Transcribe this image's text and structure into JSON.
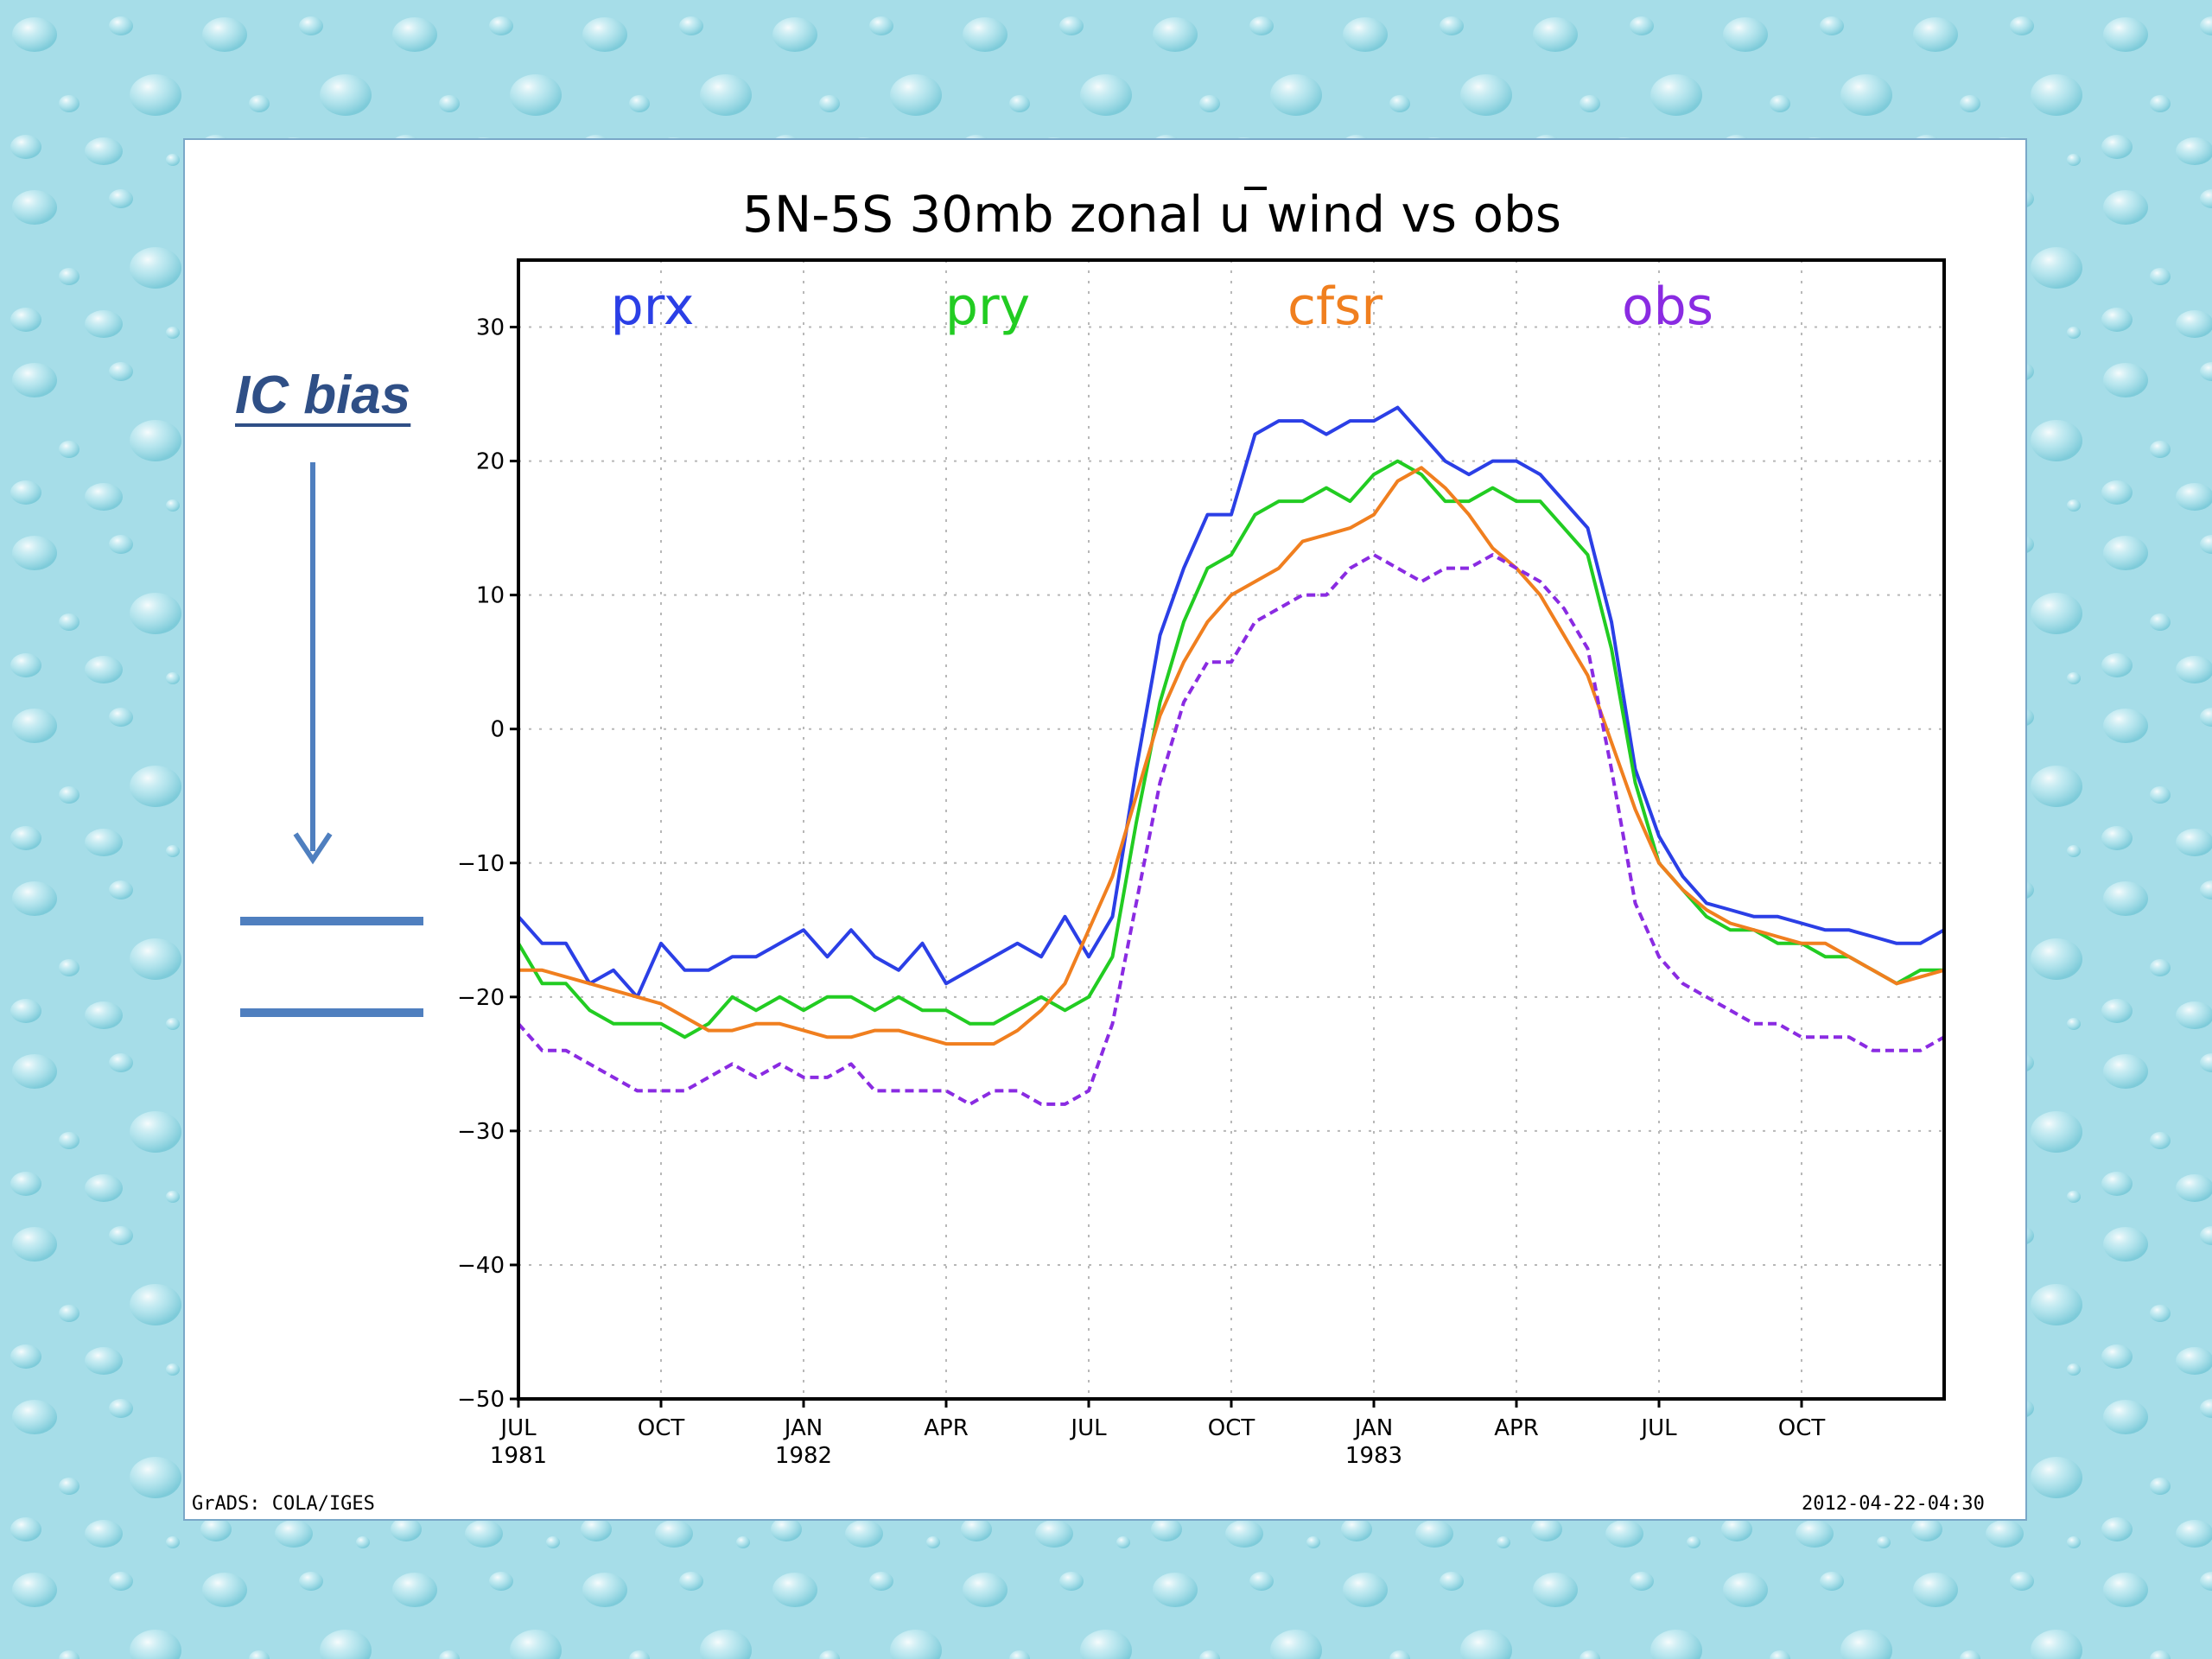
{
  "annotation": {
    "label": "IC bias",
    "arrow_color": "#4f7fbf"
  },
  "footer": {
    "left": "GrADS: COLA/IGES",
    "right": "2012-04-22-04:30"
  },
  "chart_data": {
    "type": "line",
    "title": "5N-5S 30mb zonal u wind vs obs",
    "xlabel": "",
    "ylabel": "",
    "ylim": [
      -50,
      35
    ],
    "yticks": [
      30,
      20,
      10,
      0,
      -10,
      -20,
      -30,
      -40,
      -50
    ],
    "xlim": [
      0,
      30
    ],
    "x_unit": "months since JUL 1981",
    "xticks": [
      {
        "x": 0,
        "label": "JUL",
        "year": "1981"
      },
      {
        "x": 3,
        "label": "OCT",
        "year": ""
      },
      {
        "x": 6,
        "label": "JAN",
        "year": "1982"
      },
      {
        "x": 9,
        "label": "APR",
        "year": ""
      },
      {
        "x": 12,
        "label": "JUL",
        "year": ""
      },
      {
        "x": 15,
        "label": "OCT",
        "year": ""
      },
      {
        "x": 18,
        "label": "JAN",
        "year": "1983"
      },
      {
        "x": 21,
        "label": "APR",
        "year": ""
      },
      {
        "x": 24,
        "label": "JUL",
        "year": ""
      },
      {
        "x": 27,
        "label": "OCT",
        "year": ""
      }
    ],
    "grid": true,
    "legend_position": "top inside plot",
    "series": [
      {
        "name": "prx",
        "color": "#2b3fe6",
        "dashed": false,
        "points": [
          [
            0,
            -14
          ],
          [
            0.5,
            -16
          ],
          [
            1,
            -16
          ],
          [
            1.5,
            -19
          ],
          [
            2,
            -18
          ],
          [
            2.5,
            -20
          ],
          [
            3,
            -16
          ],
          [
            3.5,
            -18
          ],
          [
            4,
            -18
          ],
          [
            4.5,
            -17
          ],
          [
            5,
            -17
          ],
          [
            5.5,
            -16
          ],
          [
            6,
            -15
          ],
          [
            6.5,
            -17
          ],
          [
            7,
            -15
          ],
          [
            7.5,
            -17
          ],
          [
            8,
            -18
          ],
          [
            8.5,
            -16
          ],
          [
            9,
            -19
          ],
          [
            9.5,
            -18
          ],
          [
            10,
            -17
          ],
          [
            10.5,
            -16
          ],
          [
            11,
            -17
          ],
          [
            11.5,
            -14
          ],
          [
            12,
            -17
          ],
          [
            12.5,
            -14
          ],
          [
            13,
            -3
          ],
          [
            13.5,
            7
          ],
          [
            14,
            12
          ],
          [
            14.5,
            16
          ],
          [
            15,
            16
          ],
          [
            15.5,
            22
          ],
          [
            16,
            23
          ],
          [
            16.5,
            23
          ],
          [
            17,
            22
          ],
          [
            17.5,
            23
          ],
          [
            18,
            23
          ],
          [
            18.5,
            24
          ],
          [
            19,
            22
          ],
          [
            19.5,
            20
          ],
          [
            20,
            19
          ],
          [
            20.5,
            20
          ],
          [
            21,
            20
          ],
          [
            21.5,
            19
          ],
          [
            22,
            17
          ],
          [
            22.5,
            15
          ],
          [
            23,
            8
          ],
          [
            23.5,
            -3
          ],
          [
            24,
            -8
          ],
          [
            24.5,
            -11
          ],
          [
            25,
            -13
          ],
          [
            25.5,
            -13.5
          ],
          [
            26,
            -14
          ],
          [
            26.5,
            -14
          ],
          [
            27,
            -14.5
          ],
          [
            27.5,
            -15
          ],
          [
            28,
            -15
          ],
          [
            28.5,
            -15.5
          ],
          [
            29,
            -16
          ],
          [
            29.5,
            -16
          ],
          [
            30,
            -15
          ]
        ]
      },
      {
        "name": "pry",
        "color": "#22cc22",
        "dashed": false,
        "points": [
          [
            0,
            -16
          ],
          [
            0.5,
            -19
          ],
          [
            1,
            -19
          ],
          [
            1.5,
            -21
          ],
          [
            2,
            -22
          ],
          [
            2.5,
            -22
          ],
          [
            3,
            -22
          ],
          [
            3.5,
            -23
          ],
          [
            4,
            -22
          ],
          [
            4.5,
            -20
          ],
          [
            5,
            -21
          ],
          [
            5.5,
            -20
          ],
          [
            6,
            -21
          ],
          [
            6.5,
            -20
          ],
          [
            7,
            -20
          ],
          [
            7.5,
            -21
          ],
          [
            8,
            -20
          ],
          [
            8.5,
            -21
          ],
          [
            9,
            -21
          ],
          [
            9.5,
            -22
          ],
          [
            10,
            -22
          ],
          [
            10.5,
            -21
          ],
          [
            11,
            -20
          ],
          [
            11.5,
            -21
          ],
          [
            12,
            -20
          ],
          [
            12.5,
            -17
          ],
          [
            13,
            -7
          ],
          [
            13.5,
            2
          ],
          [
            14,
            8
          ],
          [
            14.5,
            12
          ],
          [
            15,
            13
          ],
          [
            15.5,
            16
          ],
          [
            16,
            17
          ],
          [
            16.5,
            17
          ],
          [
            17,
            18
          ],
          [
            17.5,
            17
          ],
          [
            18,
            19
          ],
          [
            18.5,
            20
          ],
          [
            19,
            19
          ],
          [
            19.5,
            17
          ],
          [
            20,
            17
          ],
          [
            20.5,
            18
          ],
          [
            21,
            17
          ],
          [
            21.5,
            17
          ],
          [
            22,
            15
          ],
          [
            22.5,
            13
          ],
          [
            23,
            6
          ],
          [
            23.5,
            -4
          ],
          [
            24,
            -10
          ],
          [
            24.5,
            -12
          ],
          [
            25,
            -14
          ],
          [
            25.5,
            -15
          ],
          [
            26,
            -15
          ],
          [
            26.5,
            -16
          ],
          [
            27,
            -16
          ],
          [
            27.5,
            -17
          ],
          [
            28,
            -17
          ],
          [
            28.5,
            -18
          ],
          [
            29,
            -19
          ],
          [
            29.5,
            -18
          ],
          [
            30,
            -18
          ]
        ]
      },
      {
        "name": "cfsr",
        "color": "#f07f1f",
        "dashed": false,
        "points": [
          [
            0,
            -18
          ],
          [
            0.5,
            -18
          ],
          [
            1,
            -18.5
          ],
          [
            1.5,
            -19
          ],
          [
            2,
            -19.5
          ],
          [
            2.5,
            -20
          ],
          [
            3,
            -20.5
          ],
          [
            3.5,
            -21.5
          ],
          [
            4,
            -22.5
          ],
          [
            4.5,
            -22.5
          ],
          [
            5,
            -22
          ],
          [
            5.5,
            -22
          ],
          [
            6,
            -22.5
          ],
          [
            6.5,
            -23
          ],
          [
            7,
            -23
          ],
          [
            7.5,
            -22.5
          ],
          [
            8,
            -22.5
          ],
          [
            8.5,
            -23
          ],
          [
            9,
            -23.5
          ],
          [
            9.5,
            -23.5
          ],
          [
            10,
            -23.5
          ],
          [
            10.5,
            -22.5
          ],
          [
            11,
            -21
          ],
          [
            11.5,
            -19
          ],
          [
            12,
            -15
          ],
          [
            12.5,
            -11
          ],
          [
            13,
            -5
          ],
          [
            13.5,
            1
          ],
          [
            14,
            5
          ],
          [
            14.5,
            8
          ],
          [
            15,
            10
          ],
          [
            15.5,
            11
          ],
          [
            16,
            12
          ],
          [
            16.5,
            14
          ],
          [
            17,
            14.5
          ],
          [
            17.5,
            15
          ],
          [
            18,
            16
          ],
          [
            18.5,
            18.5
          ],
          [
            19,
            19.5
          ],
          [
            19.5,
            18
          ],
          [
            20,
            16
          ],
          [
            20.5,
            13.5
          ],
          [
            21,
            12
          ],
          [
            21.5,
            10
          ],
          [
            22,
            7
          ],
          [
            22.5,
            4
          ],
          [
            23,
            -1
          ],
          [
            23.5,
            -6
          ],
          [
            24,
            -10
          ],
          [
            24.5,
            -12
          ],
          [
            25,
            -13.5
          ],
          [
            25.5,
            -14.5
          ],
          [
            26,
            -15
          ],
          [
            26.5,
            -15.5
          ],
          [
            27,
            -16
          ],
          [
            27.5,
            -16
          ],
          [
            28,
            -17
          ],
          [
            28.5,
            -18
          ],
          [
            29,
            -19
          ],
          [
            29.5,
            -18.5
          ],
          [
            30,
            -18
          ]
        ]
      },
      {
        "name": "obs",
        "color": "#8a2be2",
        "dashed": true,
        "points": [
          [
            0,
            -22
          ],
          [
            0.5,
            -24
          ],
          [
            1,
            -24
          ],
          [
            1.5,
            -25
          ],
          [
            2,
            -26
          ],
          [
            2.5,
            -27
          ],
          [
            3,
            -27
          ],
          [
            3.5,
            -27
          ],
          [
            4,
            -26
          ],
          [
            4.5,
            -25
          ],
          [
            5,
            -26
          ],
          [
            5.5,
            -25
          ],
          [
            6,
            -26
          ],
          [
            6.5,
            -26
          ],
          [
            7,
            -25
          ],
          [
            7.5,
            -27
          ],
          [
            8,
            -27
          ],
          [
            8.5,
            -27
          ],
          [
            9,
            -27
          ],
          [
            9.5,
            -28
          ],
          [
            10,
            -27
          ],
          [
            10.5,
            -27
          ],
          [
            11,
            -28
          ],
          [
            11.5,
            -28
          ],
          [
            12,
            -27
          ],
          [
            12.5,
            -22
          ],
          [
            13,
            -13
          ],
          [
            13.5,
            -4
          ],
          [
            14,
            2
          ],
          [
            14.5,
            5
          ],
          [
            15,
            5
          ],
          [
            15.5,
            8
          ],
          [
            16,
            9
          ],
          [
            16.5,
            10
          ],
          [
            17,
            10
          ],
          [
            17.5,
            12
          ],
          [
            18,
            13
          ],
          [
            18.5,
            12
          ],
          [
            19,
            11
          ],
          [
            19.5,
            12
          ],
          [
            20,
            12
          ],
          [
            20.5,
            13
          ],
          [
            21,
            12
          ],
          [
            21.5,
            11
          ],
          [
            22,
            9
          ],
          [
            22.5,
            6
          ],
          [
            23,
            -3
          ],
          [
            23.5,
            -13
          ],
          [
            24,
            -17
          ],
          [
            24.5,
            -19
          ],
          [
            25,
            -20
          ],
          [
            25.5,
            -21
          ],
          [
            26,
            -22
          ],
          [
            26.5,
            -22
          ],
          [
            27,
            -23
          ],
          [
            27.5,
            -23
          ],
          [
            28,
            -23
          ],
          [
            28.5,
            -24
          ],
          [
            29,
            -24
          ],
          [
            29.5,
            -24
          ],
          [
            30,
            -23
          ]
        ]
      }
    ]
  }
}
